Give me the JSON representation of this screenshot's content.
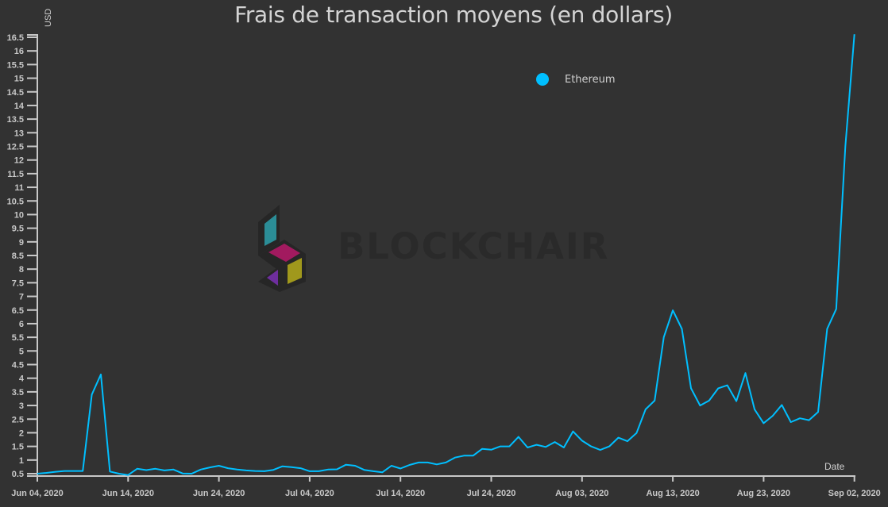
{
  "title": "Frais de transaction moyens (en dollars)",
  "watermark": {
    "brand": "BLOCKCHAIR",
    "colors": {
      "teal": "#2b8d97",
      "magenta": "#a21a5f",
      "yellow": "#a0981c",
      "purple": "#6e2e9e",
      "outline": "#262626"
    }
  },
  "legend": [
    {
      "label": "Ethereum",
      "color": "#00bfff"
    }
  ],
  "axes": {
    "y_label": "USD",
    "x_label": "Date"
  },
  "colors": {
    "background": "#323232",
    "axis": "#c8c8c8",
    "line": "#00bfff",
    "text": "#d0d0d0"
  },
  "chart_data": {
    "type": "line",
    "title": "Frais de transaction moyens (en dollars)",
    "xlabel": "Date",
    "ylabel": "USD",
    "ylim": [
      0.41,
      16.65
    ],
    "y_ticks": [
      "0.5",
      "1",
      "1.5",
      "2",
      "2.5",
      "3",
      "3.5",
      "4",
      "4.5",
      "5",
      "5.5",
      "6",
      "6.5",
      "7",
      "7.5",
      "8",
      "8.5",
      "9",
      "9.5",
      "10",
      "10.5",
      "11",
      "11.5",
      "12",
      "12.5",
      "13",
      "13.5",
      "14",
      "14.5",
      "15",
      "15.5",
      "16",
      "16.5"
    ],
    "x_ticks": [
      "Jun 04, 2020",
      "Jun 14, 2020",
      "Jun 24, 2020",
      "Jul 04, 2020",
      "Jul 14, 2020",
      "Jul 24, 2020",
      "Aug 03, 2020",
      "Aug 13, 2020",
      "Aug 23, 2020",
      "Sep 02, 2020"
    ],
    "x_start": "2020-06-04",
    "x_end": "2020-09-02",
    "x_step": "1 day",
    "grid": false,
    "legend_position": "top-right-center",
    "series": [
      {
        "name": "Ethereum",
        "color": "#00bfff",
        "values": [
          0.5,
          0.53,
          0.57,
          0.6,
          0.6,
          0.6,
          3.4,
          4.14,
          0.58,
          0.5,
          0.45,
          0.68,
          0.63,
          0.68,
          0.62,
          0.65,
          0.51,
          0.5,
          0.65,
          0.73,
          0.79,
          0.7,
          0.65,
          0.62,
          0.6,
          0.59,
          0.64,
          0.77,
          0.74,
          0.7,
          0.59,
          0.59,
          0.65,
          0.66,
          0.83,
          0.79,
          0.64,
          0.59,
          0.55,
          0.79,
          0.69,
          0.82,
          0.91,
          0.91,
          0.84,
          0.91,
          1.09,
          1.16,
          1.16,
          1.41,
          1.38,
          1.5,
          1.5,
          1.85,
          1.46,
          1.56,
          1.48,
          1.66,
          1.46,
          2.05,
          1.71,
          1.5,
          1.37,
          1.5,
          1.82,
          1.69,
          1.99,
          2.86,
          3.18,
          5.5,
          6.49,
          5.81,
          3.63,
          3.0,
          3.18,
          3.63,
          3.74,
          3.16,
          4.19,
          2.86,
          2.35,
          2.62,
          3.02,
          2.39,
          2.53,
          2.46,
          2.76,
          5.81,
          6.54,
          12.5,
          16.61
        ]
      }
    ]
  }
}
